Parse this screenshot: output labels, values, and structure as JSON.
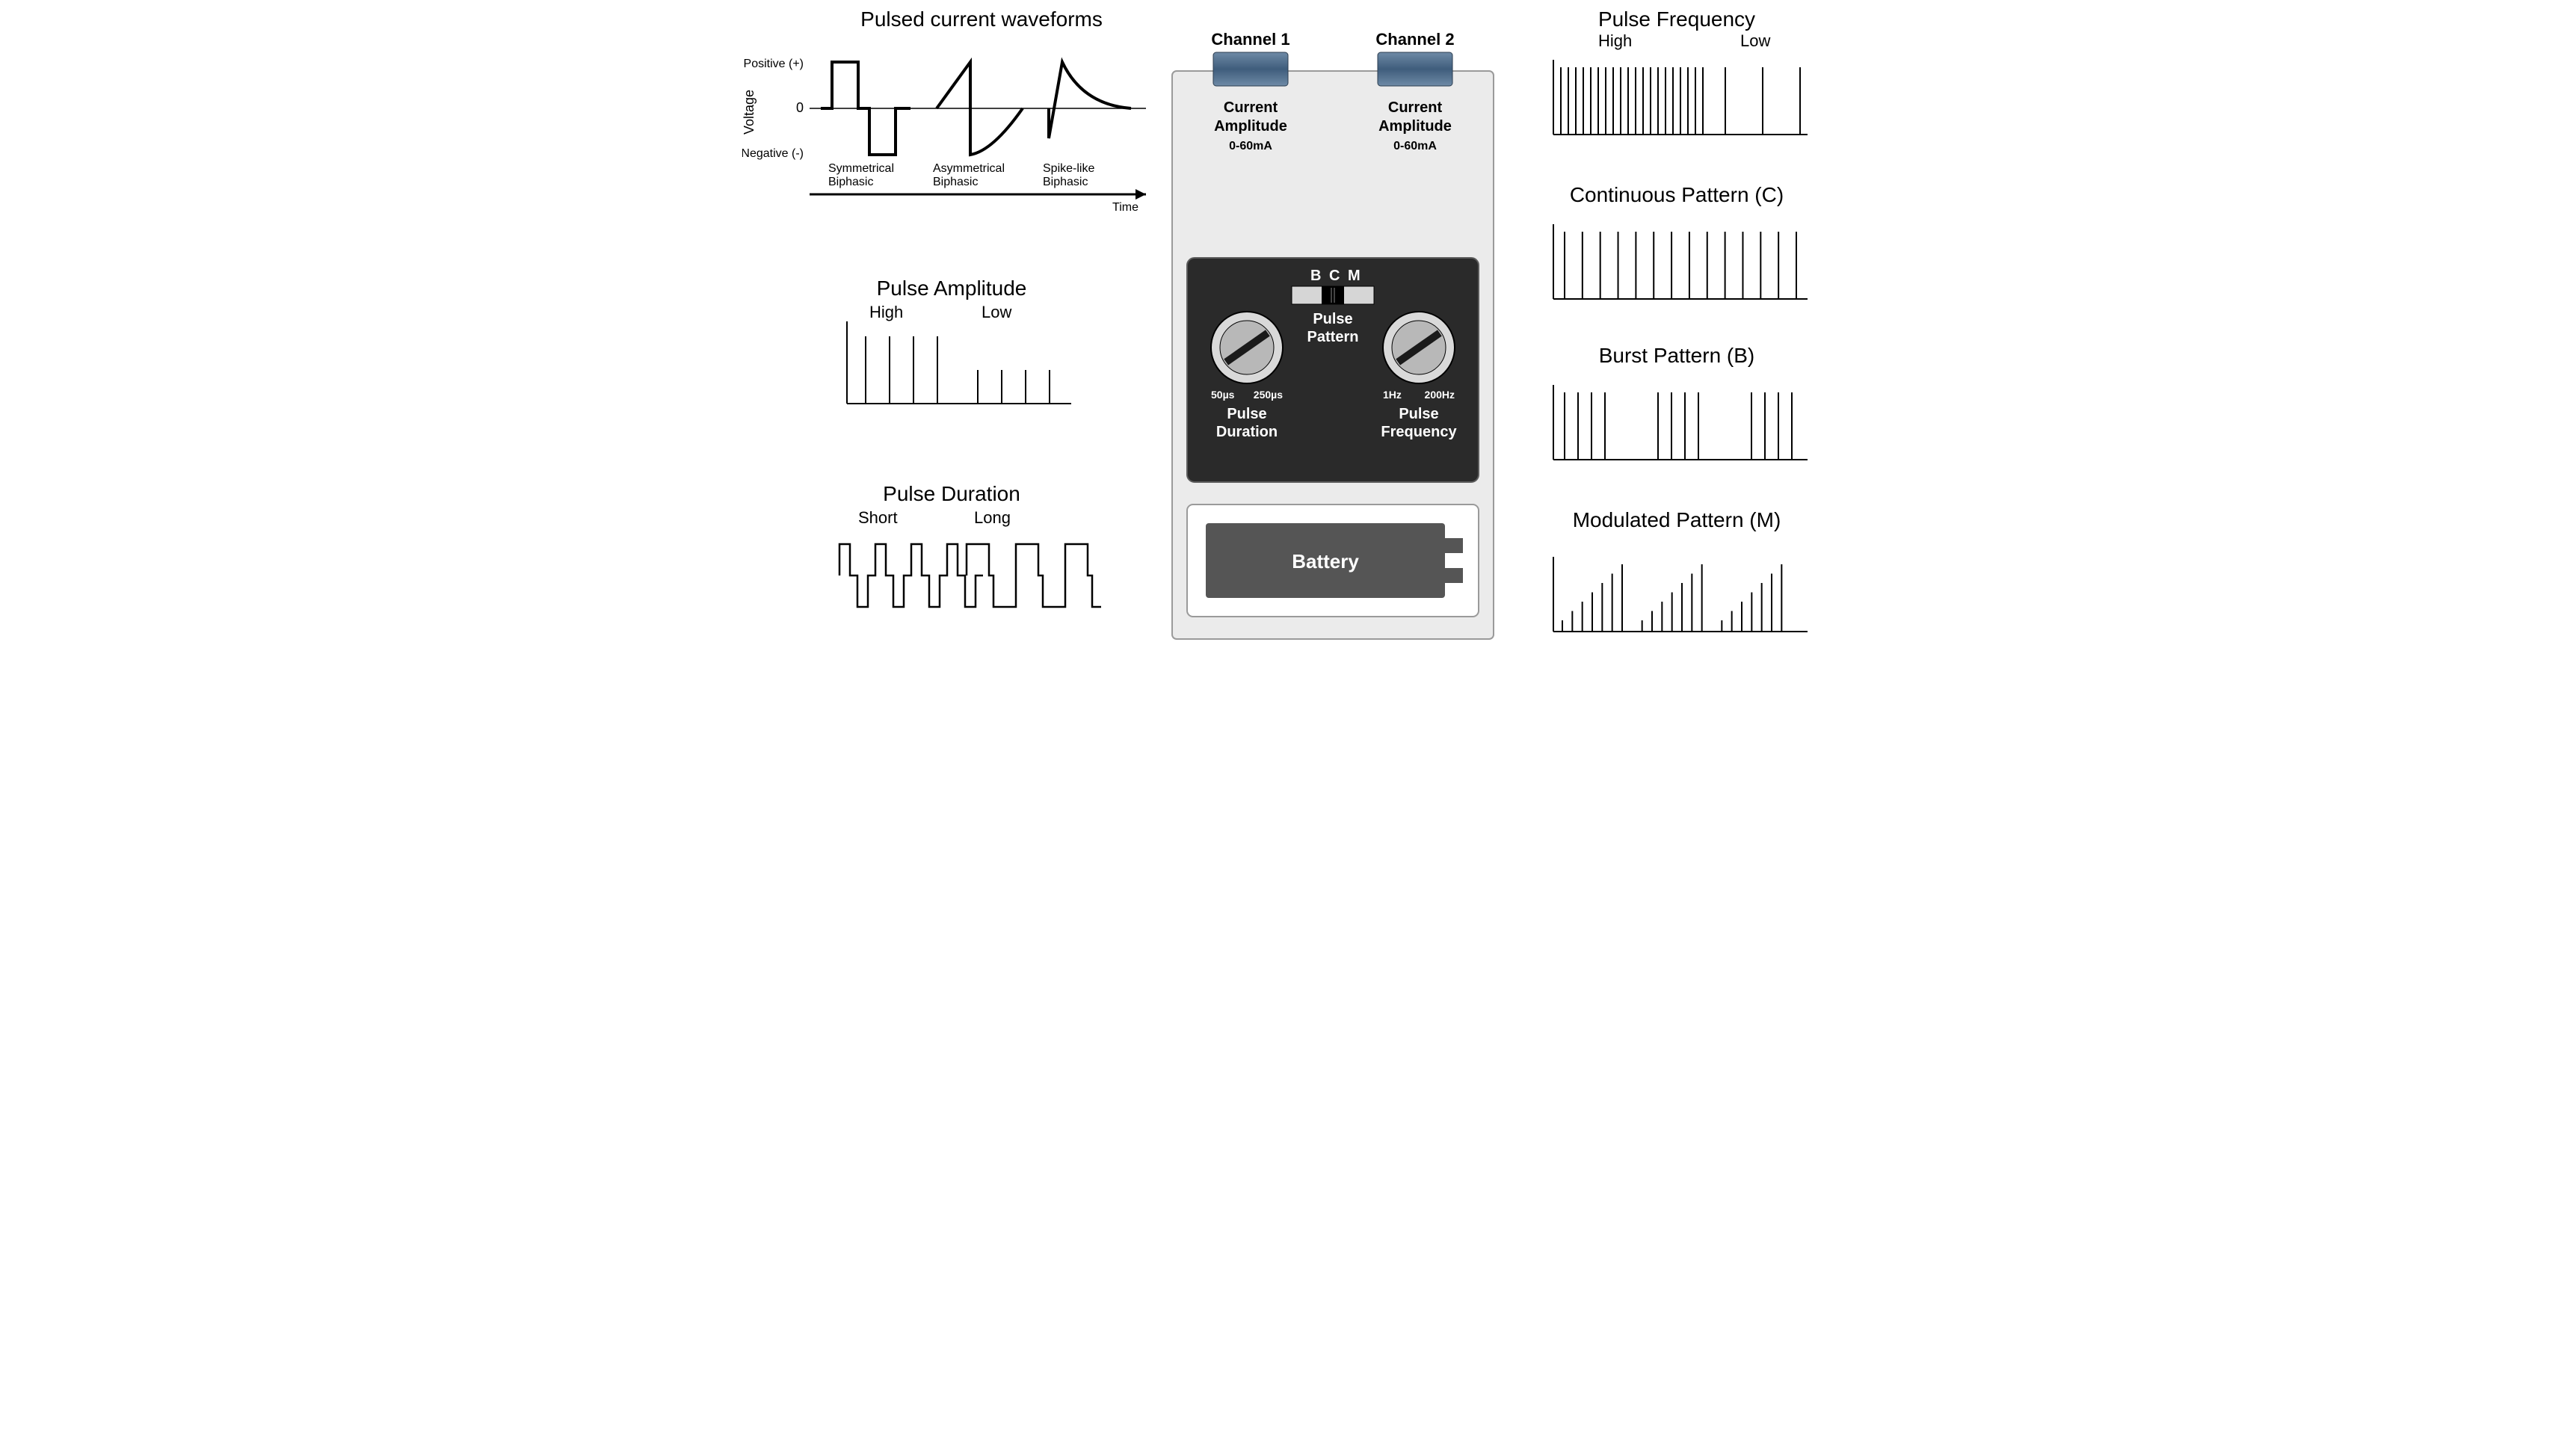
{
  "colors": {
    "bg": "#ffffff",
    "text": "#000000",
    "device_bg": "#ebebeb",
    "device_border": "#9a9a9a",
    "panel_dark": "#2a2a2a",
    "panel_border": "#5c5c5c",
    "knob_ring": "#d9d9d9",
    "knob_face": "#b8b8b8",
    "knob_mark": "#1a1a1a",
    "battery_outer": "#ffffff",
    "battery_body": "#555555",
    "battery_text": "#ffffff",
    "channel_top": "#6e8aa6",
    "channel_mid": "#3f5d7c",
    "channel_bot": "#6e8aa6",
    "stroke": "#000000",
    "thin": 2,
    "thick": 4
  },
  "left": {
    "waveforms": {
      "title": "Pulsed current waveforms",
      "y_axis_label": "Voltage",
      "y_pos": "Positive (+)",
      "y_zero": "0",
      "y_neg": "Negative (-)",
      "x_axis_label": "Time",
      "labels": {
        "sym1": "Symmetrical",
        "sym2": "Biphasic",
        "asym1": "Asymmetrical",
        "asym2": "Biphasic",
        "spike1": "Spike-like",
        "spike2": "Biphasic"
      }
    },
    "amplitude": {
      "title": "Pulse Amplitude",
      "high": "High",
      "low": "Low",
      "high_heights": [
        90,
        90,
        90,
        90
      ],
      "low_heights": [
        45,
        45,
        45,
        45
      ]
    },
    "duration": {
      "title": "Pulse Duration",
      "short": "Short",
      "long": "Long"
    }
  },
  "device": {
    "ch1": "Channel 1",
    "ch2": "Channel 2",
    "cur_amp1": "Current",
    "cur_amp2": "Amplitude",
    "cur_range": "0-60mA",
    "pattern_labels": {
      "B": "B",
      "C": "C",
      "M": "M"
    },
    "pulse_pattern1": "Pulse",
    "pulse_pattern2": "Pattern",
    "pd_min": "50µs",
    "pd_max": "250µs",
    "pd_label1": "Pulse",
    "pd_label2": "Duration",
    "pf_min": "1Hz",
    "pf_max": "200Hz",
    "pf_label1": "Pulse",
    "pf_label2": "Frequency",
    "battery": "Battery"
  },
  "right": {
    "frequency": {
      "title": "Pulse Frequency",
      "high": "High",
      "low": "Low",
      "high_count": 20,
      "low_count": 3,
      "height": 90
    },
    "continuous": {
      "title": "Continuous Pattern (C)",
      "count": 14,
      "height": 90
    },
    "burst": {
      "title": "Burst Pattern (B)",
      "groups": 3,
      "per_group": 4,
      "height": 90
    },
    "modulated": {
      "title": "Modulated Pattern (M)",
      "groups": 3,
      "per_group": 7,
      "min_h": 15,
      "max_h": 90
    }
  }
}
